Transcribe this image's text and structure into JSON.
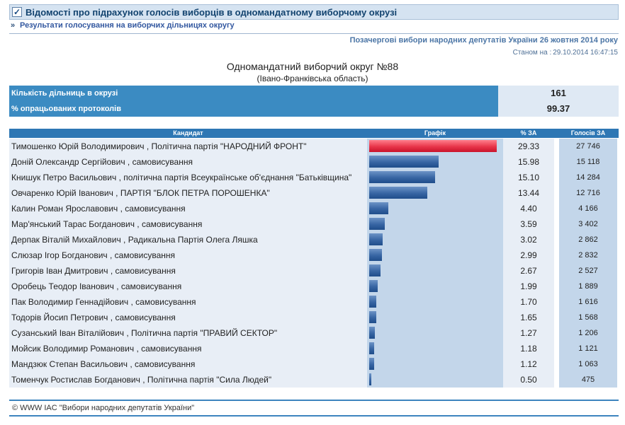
{
  "header": {
    "title": "Відомості про підрахунок голосів виборців в одномандатному виборчому окрузі",
    "subnav_link": "Результати голосування на виборчих дільницях округу",
    "election": "Позачергові вибори народних депутатів України 26 жовтня 2014 року",
    "asof_label": "Станом на :",
    "asof_value": "29.10.2014 16:47:15"
  },
  "district": {
    "name": "Одномандатний виборчий округ №88",
    "region": "(Івано-Франківська область)"
  },
  "summary": [
    {
      "label": "Кількість дільниць в окрузі",
      "value": "161"
    },
    {
      "label": "% опрацьованих протоколів",
      "value": "99.37"
    }
  ],
  "table": {
    "headers": {
      "candidate": "Кандидат",
      "chart": "Графік",
      "pct": "% ЗА",
      "votes": "Голосів ЗА"
    },
    "rows": [
      {
        "candidate": "Тимошенко Юрій Володимирович , Політична партія \"НАРОДНИЙ ФРОНТ\"",
        "pct": "29.33",
        "votes": "27 746",
        "share": 29.33
      },
      {
        "candidate": "Доній Олександр Сергійович , самовисування",
        "pct": "15.98",
        "votes": "15 118",
        "share": 15.98
      },
      {
        "candidate": "Книшук Петро Васильович , політична партія Всеукраїнське об'єднання \"Батьківщина\"",
        "pct": "15.10",
        "votes": "14 284",
        "share": 15.1
      },
      {
        "candidate": "Овчаренко Юрій Іванович , ПАРТІЯ \"БЛОК ПЕТРА ПОРОШЕНКА\"",
        "pct": "13.44",
        "votes": "12 716",
        "share": 13.44
      },
      {
        "candidate": "Калин Роман Ярославович , самовисування",
        "pct": "4.40",
        "votes": "4 166",
        "share": 4.4
      },
      {
        "candidate": "Мар'янський Тарас Богданович , самовисування",
        "pct": "3.59",
        "votes": "3 402",
        "share": 3.59
      },
      {
        "candidate": "Дерпак Віталій Михайлович , Радикальна Партія Олега Ляшка",
        "pct": "3.02",
        "votes": "2 862",
        "share": 3.02
      },
      {
        "candidate": "Слюзар Ігор Богданович , самовисування",
        "pct": "2.99",
        "votes": "2 832",
        "share": 2.99
      },
      {
        "candidate": "Григорів Іван Дмитрович , самовисування",
        "pct": "2.67",
        "votes": "2 527",
        "share": 2.67
      },
      {
        "candidate": "Оробець Теодор Іванович , самовисування",
        "pct": "1.99",
        "votes": "1 889",
        "share": 1.99
      },
      {
        "candidate": "Пак Володимир Геннадійович , самовисування",
        "pct": "1.70",
        "votes": "1 616",
        "share": 1.7
      },
      {
        "candidate": "Тодорів Йосип Петрович , самовисування",
        "pct": "1.65",
        "votes": "1 568",
        "share": 1.65
      },
      {
        "candidate": "Сузанський Іван Віталійович , Політична партія \"ПРАВИЙ СЕКТОР\"",
        "pct": "1.27",
        "votes": "1 206",
        "share": 1.27
      },
      {
        "candidate": "Мойсик Володимир Романович , самовисування",
        "pct": "1.18",
        "votes": "1 121",
        "share": 1.18
      },
      {
        "candidate": "Мандзюк Степан Васильович , самовисування",
        "pct": "1.12",
        "votes": "1 063",
        "share": 1.12
      },
      {
        "candidate": "Томенчук Ростислав Богданович , Політична партія \"Сила Людей\"",
        "pct": "0.50",
        "votes": "475",
        "share": 0.5
      }
    ]
  },
  "footer": {
    "text": "© WWW IAC \"Вибори народних депутатів України\""
  },
  "colors": {
    "header_blue": "#2e77b4",
    "bar_blue": "#3765a3",
    "bar_top": "#e8354a",
    "row_light": "#e8eef6",
    "row_dark": "#c3d6ea"
  },
  "icons": {
    "title_checkbox": "checkbox-checked-icon",
    "nav_arrow": "double-chevron-right-icon"
  }
}
